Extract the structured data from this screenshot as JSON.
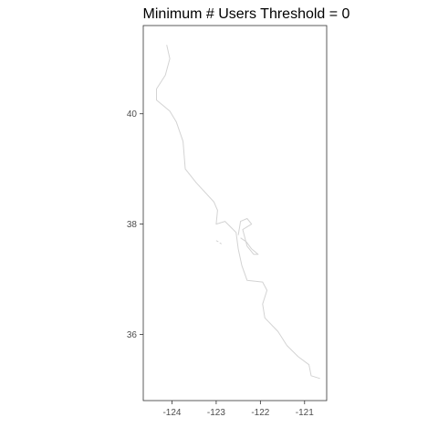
{
  "chart_data": {
    "type": "map",
    "title": "Minimum # Users Threshold =  0",
    "xlabel": "",
    "ylabel": "",
    "xlim": [
      -124.65,
      -120.5
    ],
    "ylim": [
      34.8,
      41.6
    ],
    "x_ticks": [
      {
        "value": -124,
        "label": "-124"
      },
      {
        "value": -123,
        "label": "-123"
      },
      {
        "value": -122,
        "label": "-122"
      },
      {
        "value": -121,
        "label": "-121"
      }
    ],
    "y_ticks": [
      {
        "value": 40,
        "label": "40"
      },
      {
        "value": 38,
        "label": "38"
      },
      {
        "value": 36,
        "label": "36"
      }
    ],
    "grid": false,
    "panel_border": true,
    "colors": {
      "coastline": "#d3d3d3",
      "axis": "#333333",
      "tick": "#333333"
    },
    "coastline": [
      [
        -124.12,
        41.25
      ],
      [
        -124.05,
        41.0
      ],
      [
        -124.15,
        40.7
      ],
      [
        -124.35,
        40.45
      ],
      [
        -124.35,
        40.25
      ],
      [
        -124.05,
        40.05
      ],
      [
        -123.9,
        39.85
      ],
      [
        -123.75,
        39.5
      ],
      [
        -123.7,
        39.0
      ],
      [
        -123.45,
        38.75
      ],
      [
        -123.05,
        38.4
      ],
      [
        -122.97,
        38.25
      ],
      [
        -123.0,
        38.0
      ],
      [
        -122.8,
        38.05
      ],
      [
        -122.55,
        37.85
      ],
      [
        -122.5,
        37.55
      ],
      [
        -122.42,
        37.25
      ],
      [
        -122.3,
        36.98
      ],
      [
        -121.95,
        36.95
      ],
      [
        -121.85,
        36.8
      ],
      [
        -121.95,
        36.55
      ],
      [
        -121.9,
        36.3
      ],
      [
        -121.6,
        36.05
      ],
      [
        -121.4,
        35.8
      ],
      [
        -121.15,
        35.6
      ],
      [
        -120.9,
        35.45
      ],
      [
        -120.85,
        35.25
      ],
      [
        -120.65,
        35.2
      ]
    ],
    "bay_outline": [
      [
        -122.5,
        37.8
      ],
      [
        -122.45,
        38.05
      ],
      [
        -122.3,
        38.1
      ],
      [
        -122.2,
        38.0
      ],
      [
        -122.4,
        37.9
      ],
      [
        -122.35,
        37.75
      ],
      [
        -122.3,
        37.6
      ],
      [
        -122.15,
        37.45
      ],
      [
        -122.05,
        37.45
      ],
      [
        -122.2,
        37.55
      ],
      [
        -122.32,
        37.68
      ],
      [
        -122.45,
        37.75
      ]
    ],
    "islands": [
      [
        [
          -123.0,
          37.7
        ],
        [
          -122.95,
          37.68
        ]
      ],
      [
        [
          -122.92,
          37.66
        ],
        [
          -122.88,
          37.64
        ]
      ]
    ]
  }
}
